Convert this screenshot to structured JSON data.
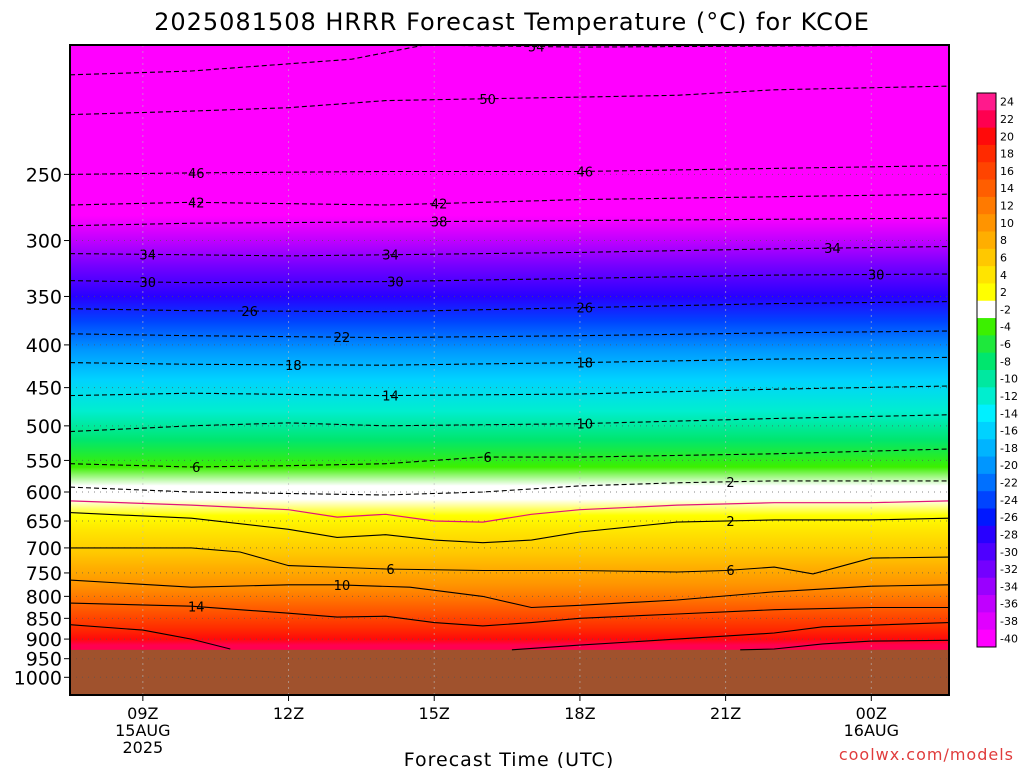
{
  "chart_data": {
    "type": "heatmap",
    "title": "2025081508 HRRR Forecast Temperature (°C) for KCOE",
    "xlabel": "Forecast Time (UTC)",
    "ylabel": "",
    "credit": "coolwx.com/models",
    "y_axis": {
      "scale": "log",
      "range": [
        1050,
        175
      ],
      "ticks": [
        250,
        300,
        350,
        400,
        450,
        500,
        550,
        600,
        650,
        700,
        750,
        800,
        850,
        900,
        950,
        1000
      ],
      "reversed": true
    },
    "x_axis": {
      "range": [
        7.5,
        25.6
      ],
      "ticks": [
        {
          "t": 9,
          "lines": [
            "09Z",
            "15AUG",
            "2025"
          ]
        },
        {
          "t": 12,
          "lines": [
            "12Z"
          ]
        },
        {
          "t": 15,
          "lines": [
            "15Z"
          ]
        },
        {
          "t": 18,
          "lines": [
            "18Z"
          ]
        },
        {
          "t": 21,
          "lines": [
            "21Z"
          ]
        },
        {
          "t": 24,
          "lines": [
            "00Z",
            "16AUG"
          ]
        }
      ]
    },
    "ground_pressure": 927,
    "colorbar": {
      "labels": [
        "24",
        "22",
        "20",
        "18",
        "16",
        "14",
        "12",
        "10",
        "8",
        "6",
        "4",
        "2",
        "-2",
        "-4",
        "-6",
        "-8",
        "-10",
        "-12",
        "-14",
        "-16",
        "-18",
        "-20",
        "-22",
        "-24",
        "-26",
        "-28",
        "-30",
        "-32",
        "-34",
        "-36",
        "-38",
        "-40"
      ],
      "colors": [
        "#ff1a8c",
        "#ff0050",
        "#ff0a0a",
        "#ff2a00",
        "#ff4400",
        "#ff5e00",
        "#ff7a00",
        "#ff9400",
        "#ffae00",
        "#ffc800",
        "#ffe400",
        "#ffff00",
        "#ffffff",
        "#3cf000",
        "#1ee83c",
        "#00e66e",
        "#00e8a0",
        "#00eecf",
        "#00f0ff",
        "#00d2ff",
        "#00b4ff",
        "#0096ff",
        "#0070ff",
        "#0044ff",
        "#0018ff",
        "#2800ff",
        "#4e00ff",
        "#7400ff",
        "#9a00ff",
        "#c000ff",
        "#e000ff",
        "#ff00ff"
      ]
    },
    "contours": [
      {
        "value": -54,
        "dashed": true,
        "x": [
          7.5,
          10,
          13.3,
          14.8,
          18,
          25.6
        ],
        "p": [
          190,
          188,
          182,
          175,
          176,
          175
        ],
        "labels": [
          {
            "t": 17.1,
            "text": "54"
          }
        ]
      },
      {
        "value": -50,
        "dashed": true,
        "x": [
          7.5,
          10,
          12,
          14,
          16,
          18,
          20,
          22,
          25.6
        ],
        "p": [
          212,
          210,
          208,
          204,
          203,
          202,
          201,
          198,
          196
        ],
        "labels": [
          {
            "t": 16.1,
            "text": "50"
          }
        ]
      },
      {
        "value": -46,
        "dashed": true,
        "x": [
          7.5,
          10,
          14,
          18,
          25.6
        ],
        "p": [
          250,
          249,
          248,
          248,
          244
        ],
        "labels": [
          {
            "t": 10.1,
            "text": "46"
          },
          {
            "t": 18.1,
            "text": "46"
          }
        ]
      },
      {
        "value": -42,
        "dashed": true,
        "x": [
          7.5,
          10,
          14,
          18,
          25.6
        ],
        "p": [
          272,
          270,
          272,
          268,
          264
        ],
        "labels": [
          {
            "t": 10.1,
            "text": "42"
          },
          {
            "t": 15.1,
            "text": "42"
          }
        ]
      },
      {
        "value": -38,
        "dashed": true,
        "x": [
          7.5,
          10,
          14,
          18,
          25.6
        ],
        "p": [
          288,
          286,
          285,
          284,
          282
        ],
        "labels": [
          {
            "t": 15.1,
            "text": "38"
          }
        ]
      },
      {
        "value": -34,
        "dashed": true,
        "x": [
          7.5,
          10,
          12,
          14,
          18,
          22,
          25.6
        ],
        "p": [
          311,
          312,
          313,
          312,
          310,
          307,
          305
        ],
        "labels": [
          {
            "t": 9.1,
            "text": "34"
          },
          {
            "t": 14.1,
            "text": "34"
          },
          {
            "t": 23.2,
            "text": "34"
          }
        ]
      },
      {
        "value": -30,
        "dashed": true,
        "x": [
          7.5,
          10,
          14,
          18,
          22,
          25.6
        ],
        "p": [
          335,
          337,
          336,
          333,
          330,
          329
        ],
        "labels": [
          {
            "t": 9.1,
            "text": "30"
          },
          {
            "t": 14.2,
            "text": "30"
          },
          {
            "t": 24.1,
            "text": "30"
          }
        ]
      },
      {
        "value": -26,
        "dashed": true,
        "x": [
          7.5,
          10,
          14,
          18,
          22,
          25.6
        ],
        "p": [
          362,
          364,
          365,
          361,
          357,
          355
        ],
        "labels": [
          {
            "t": 11.2,
            "text": "26"
          },
          {
            "t": 18.1,
            "text": "26"
          }
        ]
      },
      {
        "value": -22,
        "dashed": true,
        "x": [
          7.5,
          10,
          14,
          18,
          22,
          25.6
        ],
        "p": [
          388,
          390,
          392,
          390,
          387,
          385
        ],
        "labels": [
          {
            "t": 13.1,
            "text": "22"
          }
        ]
      },
      {
        "value": -18,
        "dashed": true,
        "x": [
          7.5,
          10,
          14,
          18,
          22,
          25.6
        ],
        "p": [
          420,
          422,
          423,
          420,
          416,
          414
        ],
        "labels": [
          {
            "t": 12.1,
            "text": "18"
          },
          {
            "t": 18.1,
            "text": "18"
          }
        ]
      },
      {
        "value": -14,
        "dashed": true,
        "x": [
          7.5,
          10,
          14,
          18,
          22,
          25.6
        ],
        "p": [
          460,
          457,
          460,
          458,
          452,
          448
        ],
        "labels": [
          {
            "t": 14.1,
            "text": "14"
          }
        ]
      },
      {
        "value": -10,
        "dashed": true,
        "x": [
          7.5,
          10,
          12,
          14,
          18,
          22,
          25.6
        ],
        "p": [
          508,
          500,
          496,
          500,
          497,
          490,
          485
        ],
        "labels": [
          {
            "t": 18.1,
            "text": "10"
          }
        ]
      },
      {
        "value": -6,
        "dashed": true,
        "x": [
          7.5,
          10,
          12,
          14,
          16,
          18,
          22,
          25.6
        ],
        "p": [
          555,
          560,
          558,
          555,
          545,
          545,
          540,
          533
        ],
        "labels": [
          {
            "t": 10.1,
            "text": "6"
          },
          {
            "t": 16.1,
            "text": "6"
          }
        ]
      },
      {
        "value": -2,
        "dashed": true,
        "x": [
          7.5,
          10,
          14,
          16,
          18,
          20,
          22,
          25.6
        ],
        "p": [
          592,
          600,
          605,
          600,
          590,
          585,
          582,
          582
        ],
        "labels": [
          {
            "t": 21.1,
            "text": "2"
          }
        ]
      },
      {
        "value": 0,
        "dashed": false,
        "color": "#e0147a",
        "x": [
          7.5,
          10,
          12,
          13,
          14,
          15,
          16,
          17,
          18,
          20,
          22,
          24,
          25.6
        ],
        "p": [
          615,
          622,
          630,
          643,
          638,
          650,
          652,
          638,
          630,
          622,
          618,
          618,
          615
        ],
        "labels": []
      },
      {
        "value": 2,
        "dashed": false,
        "x": [
          7.5,
          10,
          12,
          13,
          14,
          15,
          16,
          17,
          18,
          20,
          22,
          24,
          25.6
        ],
        "p": [
          635,
          645,
          665,
          680,
          675,
          685,
          690,
          685,
          670,
          652,
          648,
          648,
          645
        ],
        "labels": [
          {
            "t": 21.1,
            "text": "2"
          }
        ]
      },
      {
        "value": 6,
        "dashed": false,
        "x": [
          7.5,
          10,
          11,
          12,
          14,
          16,
          18,
          20,
          21,
          22,
          22.8,
          24,
          25.6
        ],
        "p": [
          700,
          700,
          708,
          735,
          742,
          745,
          745,
          748,
          745,
          738,
          752,
          720,
          718
        ],
        "labels": [
          {
            "t": 14.1,
            "text": "6"
          },
          {
            "t": 21.1,
            "text": "6"
          }
        ]
      },
      {
        "value": 10,
        "dashed": false,
        "x": [
          7.5,
          10,
          12,
          13,
          14.5,
          16,
          17,
          18,
          20,
          22,
          24,
          25.6
        ],
        "p": [
          765,
          780,
          775,
          775,
          780,
          800,
          825,
          820,
          808,
          790,
          778,
          775
        ],
        "labels": [
          {
            "t": 13.1,
            "text": "10"
          }
        ]
      },
      {
        "value": 14,
        "dashed": false,
        "x": [
          7.5,
          10,
          12,
          13,
          14,
          15,
          16,
          17,
          18,
          20,
          22,
          24,
          25.6
        ],
        "p": [
          815,
          822,
          838,
          847,
          845,
          860,
          868,
          860,
          850,
          840,
          830,
          825,
          825
        ],
        "labels": [
          {
            "t": 10.1,
            "text": "14"
          }
        ]
      },
      {
        "value": 18,
        "dashed": false,
        "x": [
          7.5,
          9,
          10,
          10.8
        ],
        "p": [
          865,
          878,
          900,
          925
        ],
        "labels": []
      },
      {
        "value": 18,
        "dashed": false,
        "x": [
          16.6,
          18,
          20,
          22,
          23,
          25.6
        ],
        "p": [
          927,
          915,
          900,
          885,
          870,
          860
        ],
        "labels": []
      },
      {
        "value": 22,
        "dashed": false,
        "x": [
          21.3,
          22,
          23,
          24,
          25.6
        ],
        "p": [
          927,
          925,
          912,
          905,
          903
        ],
        "labels": []
      }
    ]
  }
}
